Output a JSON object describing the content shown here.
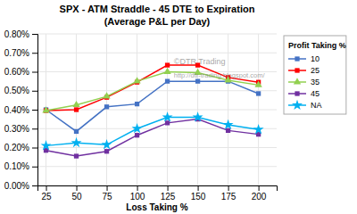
{
  "chart_data": {
    "type": "line",
    "title": "SPX - ATM Straddle - 45 DTE to Expiration",
    "subtitle": "(Average P&L per Day)",
    "x_label": "Loss Taking %",
    "legend_title": "Profit Taking %",
    "annotations": [
      "©DTR Trading",
      "http://dtr-trading.blogspot.com/"
    ],
    "x": [
      25,
      50,
      75,
      100,
      125,
      150,
      175,
      200
    ],
    "series": [
      {
        "name": "10",
        "color": "#4472C4",
        "marker": "square",
        "values": [
          0.4,
          0.285,
          0.415,
          0.43,
          0.55,
          0.55,
          0.55,
          0.485
        ]
      },
      {
        "name": "25",
        "color": "#FF0000",
        "marker": "square",
        "values": [
          0.395,
          0.4,
          0.465,
          0.545,
          0.635,
          0.635,
          0.57,
          0.545
        ]
      },
      {
        "name": "35",
        "color": "#92D050",
        "marker": "triangle",
        "values": [
          0.395,
          0.425,
          0.47,
          0.55,
          0.6,
          0.595,
          0.555,
          0.53
        ]
      },
      {
        "name": "45",
        "color": "#7030A0",
        "marker": "square",
        "values": [
          0.185,
          0.155,
          0.18,
          0.265,
          0.33,
          0.35,
          0.29,
          0.27
        ]
      },
      {
        "name": "NA",
        "color": "#00B0F0",
        "marker": "star",
        "values": [
          0.21,
          0.225,
          0.215,
          0.3,
          0.36,
          0.36,
          0.32,
          0.295
        ]
      }
    ],
    "xlim": [
      18,
      215
    ],
    "xticks": [
      25,
      50,
      75,
      100,
      125,
      150,
      175,
      200
    ],
    "ylim": [
      0.0,
      0.8
    ],
    "yticks": [
      {
        "value": 0.0,
        "label": "0.00%"
      },
      {
        "value": 0.1,
        "label": "0.10%"
      },
      {
        "value": 0.2,
        "label": "0.20%"
      },
      {
        "value": 0.3,
        "label": "0.30%"
      },
      {
        "value": 0.4,
        "label": "0.40%"
      },
      {
        "value": 0.5,
        "label": "0.50%"
      },
      {
        "value": 0.6,
        "label": "0.60%"
      },
      {
        "value": 0.7,
        "label": "0.70%"
      },
      {
        "value": 0.8,
        "label": "0.80%"
      }
    ],
    "grid": true,
    "legend": "right"
  }
}
